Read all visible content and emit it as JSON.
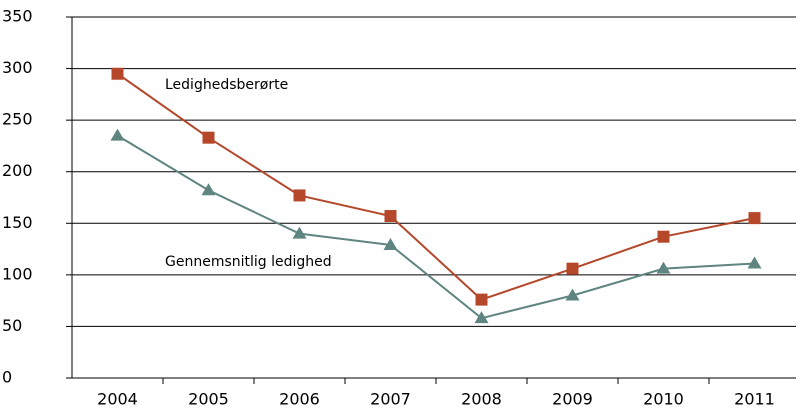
{
  "chart_data": {
    "type": "line",
    "categories": [
      "2004",
      "2005",
      "2006",
      "2007",
      "2008",
      "2009",
      "2010",
      "2011"
    ],
    "series": [
      {
        "name": "Ledighedsberørte",
        "color": "#b5472a",
        "marker": "square",
        "values": [
          295,
          233,
          177,
          157,
          76,
          106,
          137,
          155
        ]
      },
      {
        "name": "Gennemsnitlig ledighed",
        "color": "#5f8580",
        "marker": "triangle",
        "values": [
          235,
          182,
          140,
          129,
          58,
          80,
          106,
          111
        ]
      }
    ],
    "ylim": [
      0,
      350
    ],
    "yticks": [
      0,
      50,
      100,
      150,
      200,
      250,
      300,
      350
    ],
    "grid": true
  }
}
